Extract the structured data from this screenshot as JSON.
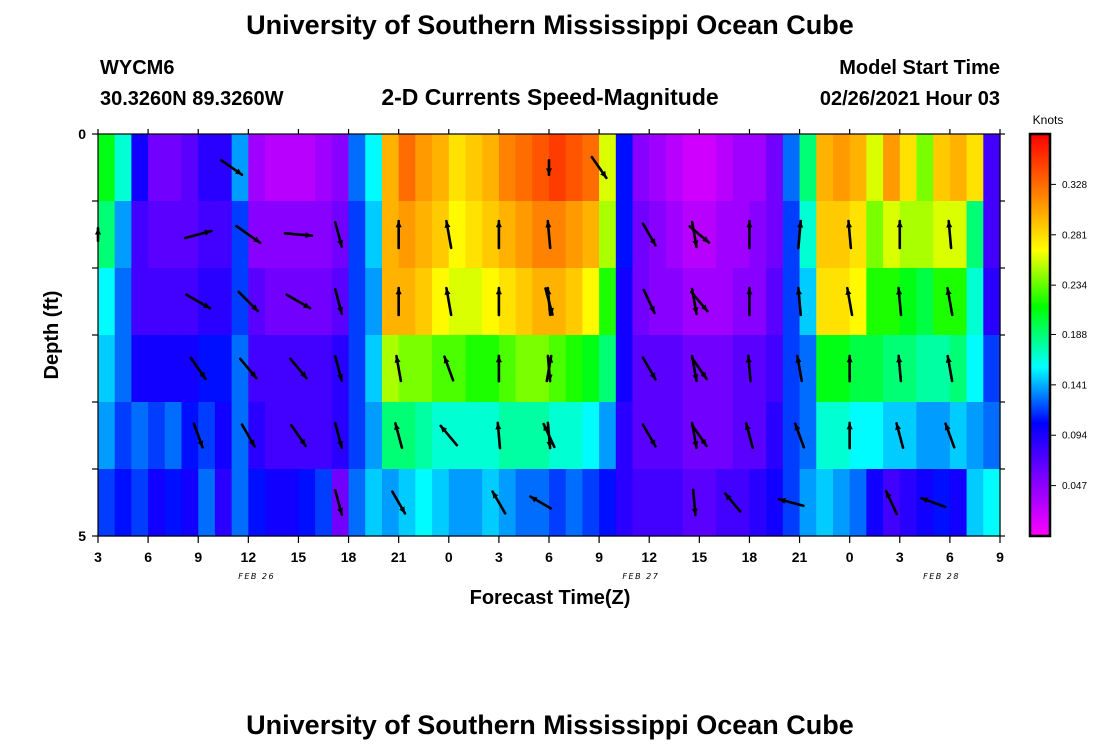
{
  "header": {
    "title_top": "University of Southern Mississippi Ocean Cube",
    "title_bottom": "University of Southern Mississippi Ocean Cube",
    "station_id": "WYCM6",
    "station_coords": "30.3260N 89.3260W",
    "plot_title": "2-D Currents Speed-Magnitude",
    "model_start_label": "Model Start Time",
    "model_start_value": "02/26/2021 Hour 03"
  },
  "colors": {
    "ramp": [
      "#ff00ff",
      "#8000ff",
      "#0000ff",
      "#00ffff",
      "#00ff00",
      "#ffff00",
      "#ff8000",
      "#ff0000"
    ],
    "arrow": "#000000",
    "axis": "#000000"
  },
  "chart_data": {
    "type": "heatmap",
    "title": "2-D Currents Speed-Magnitude",
    "xlabel": "Forecast Time(Z)",
    "ylabel": "Depth (ft)",
    "x_tick_labels": [
      "3",
      "6",
      "9",
      "12",
      "15",
      "18",
      "21",
      "0",
      "3",
      "6",
      "9",
      "12",
      "15",
      "18",
      "21",
      "0",
      "3",
      "6",
      "9"
    ],
    "x_range_hours": [
      0,
      54
    ],
    "date_labels": [
      {
        "text": "FEB 26",
        "hour": 9.5
      },
      {
        "text": "FEB 27",
        "hour": 32.5
      },
      {
        "text": "FEB 28",
        "hour": 50.5
      }
    ],
    "y_tick_labels": [
      "0",
      "5"
    ],
    "ylim": [
      0,
      5
    ],
    "depth_layers": [
      0,
      1,
      2,
      3,
      4,
      5
    ],
    "colorbar": {
      "unit": "Knots",
      "min": 0,
      "max": 0.375,
      "tick_labels": [
        "0.328",
        "0.281",
        "0.234",
        "0.188",
        "0.141",
        "0.094",
        "0.047"
      ],
      "tick_values": [
        0.328,
        0.281,
        0.234,
        0.188,
        0.141,
        0.094,
        0.047
      ]
    },
    "layer_speeds": [
      [
        0.21,
        0.17,
        0.1,
        0.06,
        0.06,
        0.07,
        0.09,
        0.09,
        0.14,
        0.04,
        0.03,
        0.03,
        0.03,
        0.04,
        0.05,
        0.13,
        0.16,
        0.3,
        0.33,
        0.31,
        0.3,
        0.28,
        0.29,
        0.3,
        0.32,
        0.33,
        0.34,
        0.35,
        0.34,
        0.33,
        0.26,
        0.11,
        0.05,
        0.04,
        0.03,
        0.02,
        0.02,
        0.03,
        0.04,
        0.04,
        0.06,
        0.13,
        0.19,
        0.3,
        0.31,
        0.3,
        0.26,
        0.31,
        0.28,
        0.24,
        0.29,
        0.3,
        0.28,
        0.08
      ],
      [
        0.19,
        0.14,
        0.08,
        0.07,
        0.07,
        0.07,
        0.08,
        0.08,
        0.12,
        0.05,
        0.05,
        0.05,
        0.05,
        0.05,
        0.06,
        0.12,
        0.15,
        0.3,
        0.31,
        0.3,
        0.29,
        0.27,
        0.28,
        0.29,
        0.3,
        0.31,
        0.32,
        0.32,
        0.31,
        0.3,
        0.25,
        0.11,
        0.06,
        0.05,
        0.04,
        0.03,
        0.03,
        0.04,
        0.04,
        0.05,
        0.06,
        0.12,
        0.17,
        0.29,
        0.29,
        0.28,
        0.24,
        0.26,
        0.25,
        0.25,
        0.26,
        0.26,
        0.19,
        0.08
      ],
      [
        0.16,
        0.13,
        0.08,
        0.08,
        0.08,
        0.08,
        0.09,
        0.09,
        0.12,
        0.07,
        0.06,
        0.06,
        0.06,
        0.06,
        0.07,
        0.12,
        0.14,
        0.3,
        0.3,
        0.29,
        0.27,
        0.26,
        0.26,
        0.27,
        0.28,
        0.29,
        0.3,
        0.3,
        0.29,
        0.27,
        0.22,
        0.1,
        0.06,
        0.05,
        0.05,
        0.04,
        0.04,
        0.04,
        0.05,
        0.05,
        0.07,
        0.12,
        0.15,
        0.28,
        0.28,
        0.27,
        0.22,
        0.22,
        0.21,
        0.2,
        0.22,
        0.22,
        0.17,
        0.09
      ],
      [
        0.15,
        0.13,
        0.1,
        0.1,
        0.1,
        0.1,
        0.11,
        0.11,
        0.13,
        0.08,
        0.08,
        0.08,
        0.08,
        0.08,
        0.09,
        0.12,
        0.15,
        0.25,
        0.24,
        0.24,
        0.23,
        0.23,
        0.22,
        0.22,
        0.23,
        0.24,
        0.24,
        0.23,
        0.22,
        0.21,
        0.19,
        0.1,
        0.07,
        0.07,
        0.07,
        0.06,
        0.06,
        0.06,
        0.07,
        0.07,
        0.08,
        0.12,
        0.13,
        0.21,
        0.21,
        0.2,
        0.2,
        0.19,
        0.19,
        0.18,
        0.18,
        0.19,
        0.16,
        0.12
      ],
      [
        0.14,
        0.12,
        0.13,
        0.12,
        0.13,
        0.11,
        0.12,
        0.1,
        0.13,
        0.09,
        0.08,
        0.08,
        0.08,
        0.08,
        0.09,
        0.12,
        0.14,
        0.19,
        0.19,
        0.18,
        0.17,
        0.17,
        0.17,
        0.17,
        0.18,
        0.18,
        0.18,
        0.17,
        0.17,
        0.16,
        0.14,
        0.09,
        0.07,
        0.07,
        0.07,
        0.06,
        0.06,
        0.06,
        0.07,
        0.07,
        0.09,
        0.12,
        0.13,
        0.17,
        0.17,
        0.16,
        0.16,
        0.15,
        0.15,
        0.14,
        0.14,
        0.15,
        0.14,
        0.13
      ],
      [
        0.12,
        0.11,
        0.12,
        0.1,
        0.11,
        0.1,
        0.13,
        0.09,
        0.13,
        0.11,
        0.1,
        0.1,
        0.11,
        0.12,
        0.06,
        0.13,
        0.15,
        0.14,
        0.15,
        0.16,
        0.15,
        0.14,
        0.14,
        0.15,
        0.14,
        0.13,
        0.13,
        0.12,
        0.13,
        0.12,
        0.11,
        0.09,
        0.08,
        0.08,
        0.08,
        0.07,
        0.07,
        0.08,
        0.08,
        0.09,
        0.1,
        0.12,
        0.14,
        0.15,
        0.14,
        0.13,
        0.1,
        0.08,
        0.09,
        0.1,
        0.11,
        0.1,
        0.15,
        0.16
      ]
    ],
    "arrows_note": "current direction vectors, angle in degrees clockwise from north, length as fraction of max",
    "arrows": [
      {
        "hour": 0,
        "layer": 1,
        "angle": 0,
        "len": 0.35
      },
      {
        "hour": 8,
        "layer": 0,
        "angle": 125,
        "len": 0.7
      },
      {
        "hour": 6,
        "layer": 1,
        "angle": 75,
        "len": 0.75
      },
      {
        "hour": 9,
        "layer": 1,
        "angle": 125,
        "len": 0.8
      },
      {
        "hour": 12,
        "layer": 1,
        "angle": 95,
        "len": 0.75
      },
      {
        "hour": 14.4,
        "layer": 1,
        "angle": 165,
        "len": 0.7
      },
      {
        "hour": 6,
        "layer": 2,
        "angle": 120,
        "len": 0.75
      },
      {
        "hour": 9,
        "layer": 2,
        "angle": 135,
        "len": 0.75
      },
      {
        "hour": 12,
        "layer": 2,
        "angle": 120,
        "len": 0.75
      },
      {
        "hour": 14.4,
        "layer": 2,
        "angle": 165,
        "len": 0.7
      },
      {
        "hour": 6,
        "layer": 3,
        "angle": 145,
        "len": 0.7
      },
      {
        "hour": 9,
        "layer": 3,
        "angle": 140,
        "len": 0.7
      },
      {
        "hour": 12,
        "layer": 3,
        "angle": 140,
        "len": 0.7
      },
      {
        "hour": 14.4,
        "layer": 3,
        "angle": 165,
        "len": 0.7
      },
      {
        "hour": 6,
        "layer": 4,
        "angle": 160,
        "len": 0.7
      },
      {
        "hour": 9,
        "layer": 4,
        "angle": 150,
        "len": 0.7
      },
      {
        "hour": 12,
        "layer": 4,
        "angle": 145,
        "len": 0.7
      },
      {
        "hour": 14.4,
        "layer": 4,
        "angle": 165,
        "len": 0.7
      },
      {
        "hour": 14.4,
        "layer": 5,
        "angle": 165,
        "len": 0.7
      },
      {
        "hour": 18,
        "layer": 5,
        "angle": 150,
        "len": 0.7
      },
      {
        "hour": 18,
        "layer": 1,
        "angle": 0,
        "len": 0.75
      },
      {
        "hour": 21,
        "layer": 1,
        "angle": 350,
        "len": 0.75
      },
      {
        "hour": 24,
        "layer": 1,
        "angle": 0,
        "len": 0.75
      },
      {
        "hour": 27,
        "layer": 1,
        "angle": 355,
        "len": 0.75
      },
      {
        "hour": 18,
        "layer": 2,
        "angle": 0,
        "len": 0.75
      },
      {
        "hour": 21,
        "layer": 2,
        "angle": 350,
        "len": 0.75
      },
      {
        "hour": 24,
        "layer": 2,
        "angle": 0,
        "len": 0.75
      },
      {
        "hour": 27,
        "layer": 2,
        "angle": 355,
        "len": 0.75
      },
      {
        "hour": 18,
        "layer": 3,
        "angle": 350,
        "len": 0.7
      },
      {
        "hour": 21,
        "layer": 3,
        "angle": 340,
        "len": 0.7
      },
      {
        "hour": 24,
        "layer": 3,
        "angle": 0,
        "len": 0.7
      },
      {
        "hour": 27,
        "layer": 3,
        "angle": 10,
        "len": 0.7
      },
      {
        "hour": 18,
        "layer": 4,
        "angle": 345,
        "len": 0.7
      },
      {
        "hour": 21,
        "layer": 4,
        "angle": 320,
        "len": 0.7
      },
      {
        "hour": 24,
        "layer": 4,
        "angle": 355,
        "len": 0.7
      },
      {
        "hour": 27,
        "layer": 4,
        "angle": 335,
        "len": 0.7
      },
      {
        "hour": 24,
        "layer": 5,
        "angle": 330,
        "len": 0.7
      },
      {
        "hour": 26.5,
        "layer": 5,
        "angle": 300,
        "len": 0.65
      },
      {
        "hour": 30,
        "layer": 0,
        "angle": 145,
        "len": 0.7
      },
      {
        "hour": 33,
        "layer": 1,
        "angle": 150,
        "len": 0.7
      },
      {
        "hour": 36,
        "layer": 1,
        "angle": 130,
        "len": 0.7
      },
      {
        "hour": 33,
        "layer": 2,
        "angle": 155,
        "len": 0.7
      },
      {
        "hour": 36,
        "layer": 2,
        "angle": 140,
        "len": 0.7
      },
      {
        "hour": 33,
        "layer": 3,
        "angle": 150,
        "len": 0.7
      },
      {
        "hour": 36,
        "layer": 3,
        "angle": 145,
        "len": 0.7
      },
      {
        "hour": 33,
        "layer": 4,
        "angle": 150,
        "len": 0.7
      },
      {
        "hour": 36,
        "layer": 4,
        "angle": 145,
        "len": 0.7
      },
      {
        "hour": 27,
        "layer": 0,
        "angle": 180,
        "len": 0.4
      },
      {
        "hour": 27,
        "layer": 2,
        "angle": 165,
        "len": 0.75
      },
      {
        "hour": 27,
        "layer": 3,
        "angle": 175,
        "len": 0.7
      },
      {
        "hour": 27,
        "layer": 4,
        "angle": 175,
        "len": 0.7
      },
      {
        "hour": 35.7,
        "layer": 1,
        "angle": 170,
        "len": 0.7
      },
      {
        "hour": 35.7,
        "layer": 2,
        "angle": 170,
        "len": 0.7
      },
      {
        "hour": 35.7,
        "layer": 3,
        "angle": 170,
        "len": 0.7
      },
      {
        "hour": 35.7,
        "layer": 4,
        "angle": 170,
        "len": 0.7
      },
      {
        "hour": 35.7,
        "layer": 5,
        "angle": 175,
        "len": 0.7
      },
      {
        "hour": 39,
        "layer": 1,
        "angle": 0,
        "len": 0.75
      },
      {
        "hour": 42,
        "layer": 1,
        "angle": 5,
        "len": 0.75
      },
      {
        "hour": 45,
        "layer": 1,
        "angle": 355,
        "len": 0.75
      },
      {
        "hour": 48,
        "layer": 1,
        "angle": 0,
        "len": 0.75
      },
      {
        "hour": 51,
        "layer": 1,
        "angle": 355,
        "len": 0.75
      },
      {
        "hour": 39,
        "layer": 2,
        "angle": 0,
        "len": 0.75
      },
      {
        "hour": 42,
        "layer": 2,
        "angle": 355,
        "len": 0.75
      },
      {
        "hour": 45,
        "layer": 2,
        "angle": 350,
        "len": 0.75
      },
      {
        "hour": 48,
        "layer": 2,
        "angle": 355,
        "len": 0.75
      },
      {
        "hour": 51,
        "layer": 2,
        "angle": 350,
        "len": 0.75
      },
      {
        "hour": 39,
        "layer": 3,
        "angle": 355,
        "len": 0.7
      },
      {
        "hour": 42,
        "layer": 3,
        "angle": 350,
        "len": 0.7
      },
      {
        "hour": 45,
        "layer": 3,
        "angle": 0,
        "len": 0.7
      },
      {
        "hour": 48,
        "layer": 3,
        "angle": 355,
        "len": 0.7
      },
      {
        "hour": 51,
        "layer": 3,
        "angle": 350,
        "len": 0.7
      },
      {
        "hour": 39,
        "layer": 4,
        "angle": 345,
        "len": 0.7
      },
      {
        "hour": 42,
        "layer": 4,
        "angle": 340,
        "len": 0.7
      },
      {
        "hour": 45,
        "layer": 4,
        "angle": 0,
        "len": 0.7
      },
      {
        "hour": 48,
        "layer": 4,
        "angle": 345,
        "len": 0.7
      },
      {
        "hour": 51,
        "layer": 4,
        "angle": 340,
        "len": 0.7
      },
      {
        "hour": 38,
        "layer": 5,
        "angle": 320,
        "len": 0.65
      },
      {
        "hour": 41.5,
        "layer": 5,
        "angle": 285,
        "len": 0.7
      },
      {
        "hour": 47.5,
        "layer": 5,
        "angle": 335,
        "len": 0.7
      },
      {
        "hour": 50,
        "layer": 5,
        "angle": 290,
        "len": 0.7
      }
    ]
  }
}
